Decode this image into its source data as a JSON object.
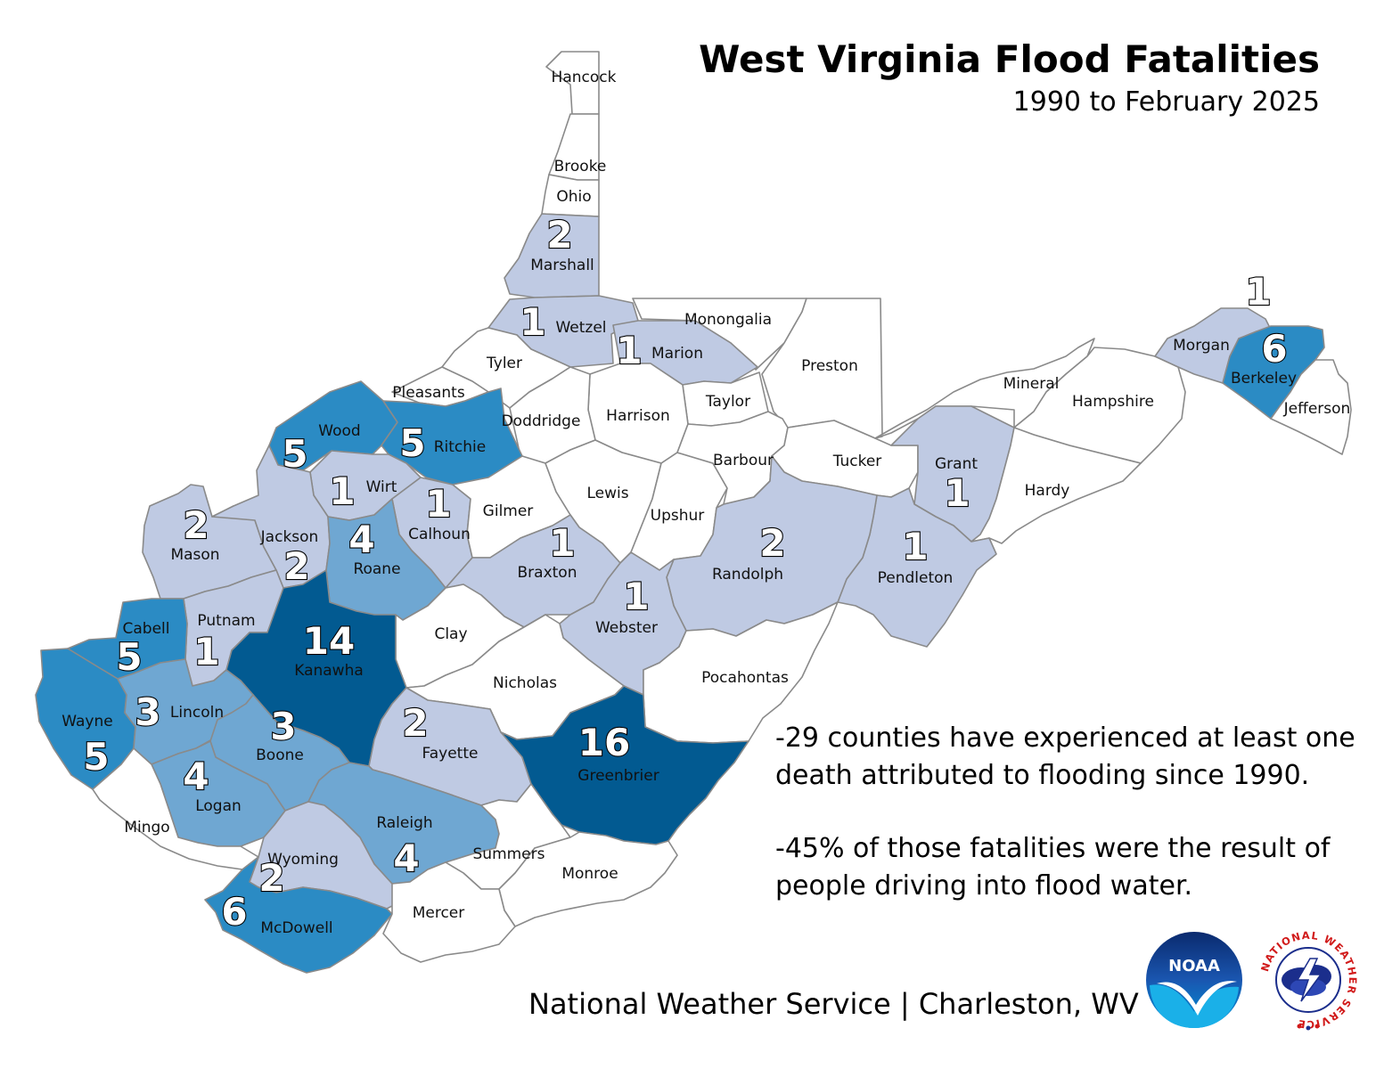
{
  "title": "West Virginia Flood Fatalities",
  "subtitle": "1990 to February 2025",
  "notes": [
    "-29 counties have experienced at least one death attributed to flooding since 1990.",
    "-45% of those fatalities were the result of people driving into flood water."
  ],
  "footer": "National Weather Service | Charleston, WV",
  "logos": {
    "noaa_text": "NOAA",
    "nws_ring_text": "NATIONAL WEATHER SERVICE"
  },
  "legend_colors": {
    "zero": "#ffffff",
    "one_to_two": "#bfcae3",
    "three_to_four": "#6fa7d2",
    "five_to_six": "#2b8bc4",
    "fourteen_plus": "#025a91"
  },
  "map_data": {
    "counties": [
      {
        "name": "Hancock",
        "fatalities": 0
      },
      {
        "name": "Brooke",
        "fatalities": 0
      },
      {
        "name": "Ohio",
        "fatalities": 0
      },
      {
        "name": "Marshall",
        "fatalities": 2
      },
      {
        "name": "Wetzel",
        "fatalities": 1
      },
      {
        "name": "Monongalia",
        "fatalities": 0
      },
      {
        "name": "Marion",
        "fatalities": 1
      },
      {
        "name": "Preston",
        "fatalities": 0
      },
      {
        "name": "Tyler",
        "fatalities": 0
      },
      {
        "name": "Pleasants",
        "fatalities": 0
      },
      {
        "name": "Taylor",
        "fatalities": 0
      },
      {
        "name": "Harrison",
        "fatalities": 0
      },
      {
        "name": "Doddridge",
        "fatalities": 0
      },
      {
        "name": "Wood",
        "fatalities": 5
      },
      {
        "name": "Ritchie",
        "fatalities": 5
      },
      {
        "name": "Wirt",
        "fatalities": 1
      },
      {
        "name": "Calhoun",
        "fatalities": 1
      },
      {
        "name": "Gilmer",
        "fatalities": 0
      },
      {
        "name": "Lewis",
        "fatalities": 0
      },
      {
        "name": "Upshur",
        "fatalities": 0
      },
      {
        "name": "Barbour",
        "fatalities": 0
      },
      {
        "name": "Tucker",
        "fatalities": 0
      },
      {
        "name": "Mineral",
        "fatalities": 0
      },
      {
        "name": "Hampshire",
        "fatalities": 0
      },
      {
        "name": "Morgan",
        "fatalities": 1
      },
      {
        "name": "Berkeley",
        "fatalities": 6
      },
      {
        "name": "Jefferson",
        "fatalities": 0
      },
      {
        "name": "Grant",
        "fatalities": 1
      },
      {
        "name": "Hardy",
        "fatalities": 0
      },
      {
        "name": "Pendleton",
        "fatalities": 1
      },
      {
        "name": "Randolph",
        "fatalities": 2
      },
      {
        "name": "Braxton",
        "fatalities": 1
      },
      {
        "name": "Webster",
        "fatalities": 1
      },
      {
        "name": "Pocahontas",
        "fatalities": 0
      },
      {
        "name": "Mason",
        "fatalities": 2
      },
      {
        "name": "Jackson",
        "fatalities": 2
      },
      {
        "name": "Roane",
        "fatalities": 4
      },
      {
        "name": "Clay",
        "fatalities": 0
      },
      {
        "name": "Nicholas",
        "fatalities": 0
      },
      {
        "name": "Putnam",
        "fatalities": 1
      },
      {
        "name": "Kanawha",
        "fatalities": 14
      },
      {
        "name": "Cabell",
        "fatalities": 5
      },
      {
        "name": "Wayne",
        "fatalities": 5
      },
      {
        "name": "Lincoln",
        "fatalities": 3
      },
      {
        "name": "Boone",
        "fatalities": 3
      },
      {
        "name": "Fayette",
        "fatalities": 2
      },
      {
        "name": "Greenbrier",
        "fatalities": 16
      },
      {
        "name": "Logan",
        "fatalities": 4
      },
      {
        "name": "Mingo",
        "fatalities": 0
      },
      {
        "name": "Raleigh",
        "fatalities": 4
      },
      {
        "name": "Summers",
        "fatalities": 0
      },
      {
        "name": "Monroe",
        "fatalities": 0
      },
      {
        "name": "Wyoming",
        "fatalities": 2
      },
      {
        "name": "McDowell",
        "fatalities": 6
      },
      {
        "name": "Mercer",
        "fatalities": 0
      }
    ]
  }
}
